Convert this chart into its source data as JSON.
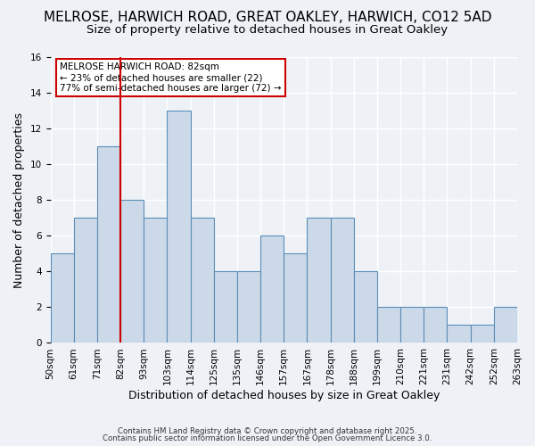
{
  "title": "MELROSE, HARWICH ROAD, GREAT OAKLEY, HARWICH, CO12 5AD",
  "subtitle": "Size of property relative to detached houses in Great Oakley",
  "xlabel": "Distribution of detached houses by size in Great Oakley",
  "ylabel": "Number of detached properties",
  "tick_labels": [
    "50sqm",
    "61sqm",
    "71sqm",
    "82sqm",
    "93sqm",
    "103sqm",
    "114sqm",
    "125sqm",
    "135sqm",
    "146sqm",
    "157sqm",
    "167sqm",
    "178sqm",
    "188sqm",
    "199sqm",
    "210sqm",
    "221sqm",
    "231sqm",
    "242sqm",
    "252sqm",
    "263sqm"
  ],
  "values": [
    5,
    7,
    11,
    8,
    7,
    13,
    7,
    4,
    4,
    6,
    5,
    7,
    7,
    4,
    2,
    2,
    2,
    1,
    1,
    2
  ],
  "bar_color": "#ccd9e8",
  "bar_edge_color": "#5b8db8",
  "red_line_x": 2.5,
  "annotation_title": "MELROSE HARWICH ROAD: 82sqm",
  "annotation_line1": "← 23% of detached houses are smaller (22)",
  "annotation_line2": "77% of semi-detached houses are larger (72) →",
  "annotation_box_color": "#ffffff",
  "annotation_box_edge": "#cc0000",
  "red_line_color": "#cc0000",
  "footer_line1": "Contains HM Land Registry data © Crown copyright and database right 2025.",
  "footer_line2": "Contains public sector information licensed under the Open Government Licence 3.0.",
  "ylim": [
    0,
    16
  ],
  "yticks": [
    0,
    2,
    4,
    6,
    8,
    10,
    12,
    14,
    16
  ],
  "background_color": "#eef2f7",
  "grid_color": "#ffffff",
  "title_fontsize": 11,
  "subtitle_fontsize": 9.5,
  "axis_fontsize": 9,
  "tick_fontsize": 7.5
}
